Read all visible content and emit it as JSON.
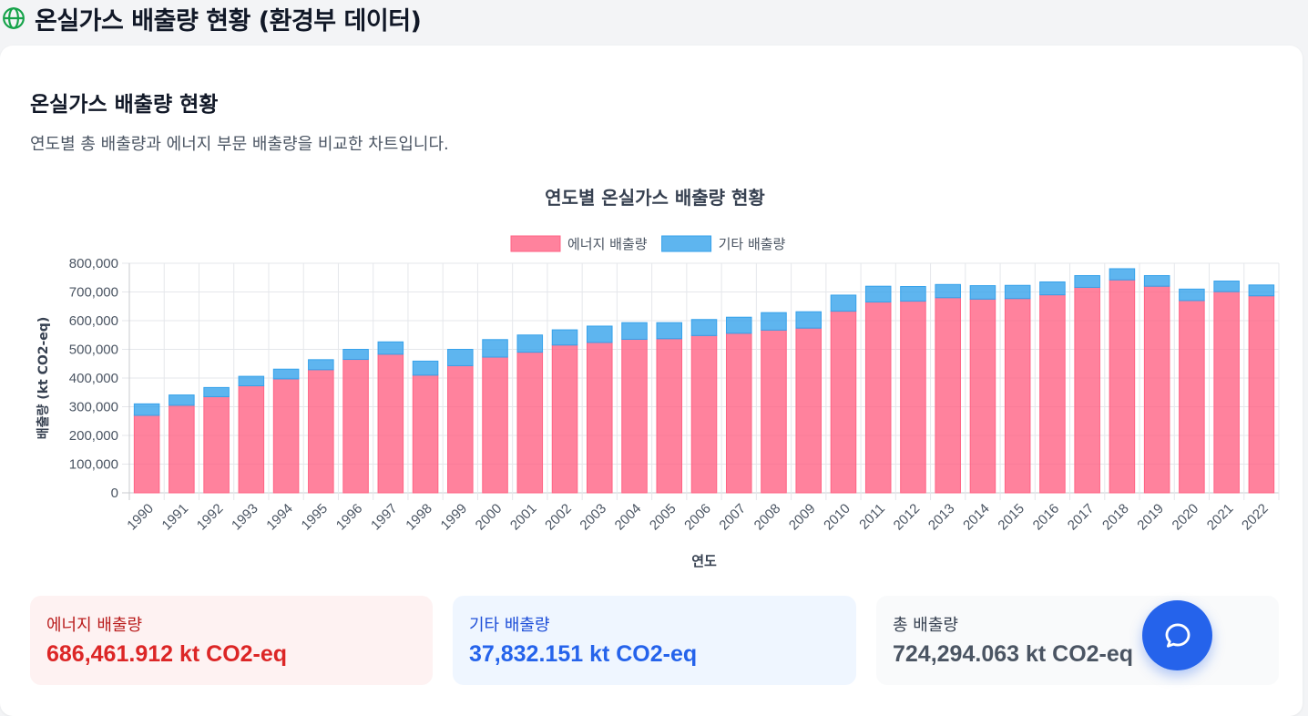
{
  "header": {
    "title": "온실가스 배출량 현황 (환경부 데이터)",
    "icon": "globe-icon"
  },
  "section": {
    "title": "온실가스 배출량 현황",
    "description": "연도별 총 배출량과 에너지 부문 배출량을 비교한 차트입니다."
  },
  "chart_data": {
    "type": "bar",
    "stacked": true,
    "title": "연도별 온실가스 배출량 현황",
    "xlabel": "연도",
    "ylabel": "배출량 (kt CO2-eq)",
    "ylim": [
      0,
      800000
    ],
    "yticks": [
      "0",
      "100,000",
      "200,000",
      "300,000",
      "400,000",
      "500,000",
      "600,000",
      "700,000",
      "800,000"
    ],
    "grid": true,
    "legend_position": "top",
    "categories": [
      "1990",
      "1991",
      "1992",
      "1993",
      "1994",
      "1995",
      "1996",
      "1997",
      "1998",
      "1999",
      "2000",
      "2001",
      "2002",
      "2003",
      "2004",
      "2005",
      "2006",
      "2007",
      "2008",
      "2009",
      "2010",
      "2011",
      "2012",
      "2013",
      "2014",
      "2015",
      "2016",
      "2017",
      "2018",
      "2019",
      "2020",
      "2021",
      "2022"
    ],
    "series": [
      {
        "name": "에너지 배출량",
        "color": "#ff6384",
        "values": [
          270000,
          305000,
          335000,
          373000,
          397000,
          429000,
          465000,
          483000,
          410000,
          443000,
          473000,
          490000,
          515000,
          524000,
          535000,
          537000,
          548000,
          556000,
          567000,
          574000,
          633000,
          665000,
          668000,
          680000,
          675000,
          677000,
          690000,
          716000,
          742000,
          720000,
          670000,
          701000,
          686462
        ]
      },
      {
        "name": "기타 배출량",
        "color": "#36a2eb",
        "values": [
          40000,
          36000,
          32000,
          33000,
          34000,
          35000,
          35000,
          43000,
          49000,
          57000,
          61000,
          60000,
          53000,
          57000,
          58000,
          56000,
          56000,
          56000,
          61000,
          57000,
          56000,
          55000,
          51000,
          46000,
          47000,
          46000,
          45000,
          41000,
          39000,
          37000,
          40000,
          37000,
          37832
        ]
      }
    ]
  },
  "stats": {
    "energy": {
      "label": "에너지 배출량",
      "value": "686,461.912 kt CO2-eq"
    },
    "other": {
      "label": "기타 배출량",
      "value": "37,832.151 kt CO2-eq"
    },
    "total": {
      "label": "총 배출량",
      "value": "724,294.063 kt CO2-eq"
    }
  },
  "chat_button": {
    "icon": "chat-bubble-icon"
  }
}
